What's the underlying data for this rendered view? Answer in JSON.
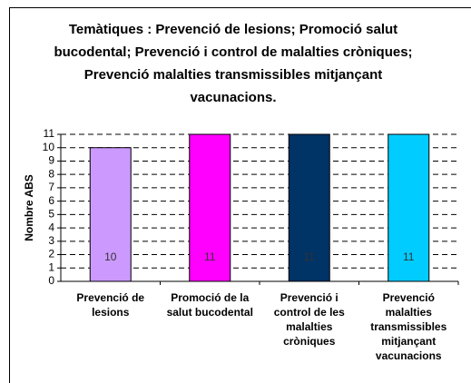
{
  "chart_data": {
    "type": "bar",
    "title": "Temàtiques : Prevenció de lesions; Promoció salut bucodental; Prevenció i control de malalties cròniques; Prevenció malalties transmissibles mitjançant vacunacions.",
    "y_label": "Nombre ABS",
    "categories": [
      "Prevenció de lesions",
      "Promoció de la salut bucodental",
      "Prevenció i control de les malalties cròniques",
      "Prevenció malalties transmissibles mitjançant vacunacions"
    ],
    "values": [
      10,
      11,
      11,
      11
    ],
    "colors": [
      "#cc99ff",
      "#ff00ff",
      "#003366",
      "#00ccff"
    ],
    "ylim": [
      0,
      11
    ],
    "yticks": [
      0,
      1,
      2,
      3,
      4,
      5,
      6,
      7,
      8,
      9,
      10,
      11
    ],
    "grid": true
  }
}
